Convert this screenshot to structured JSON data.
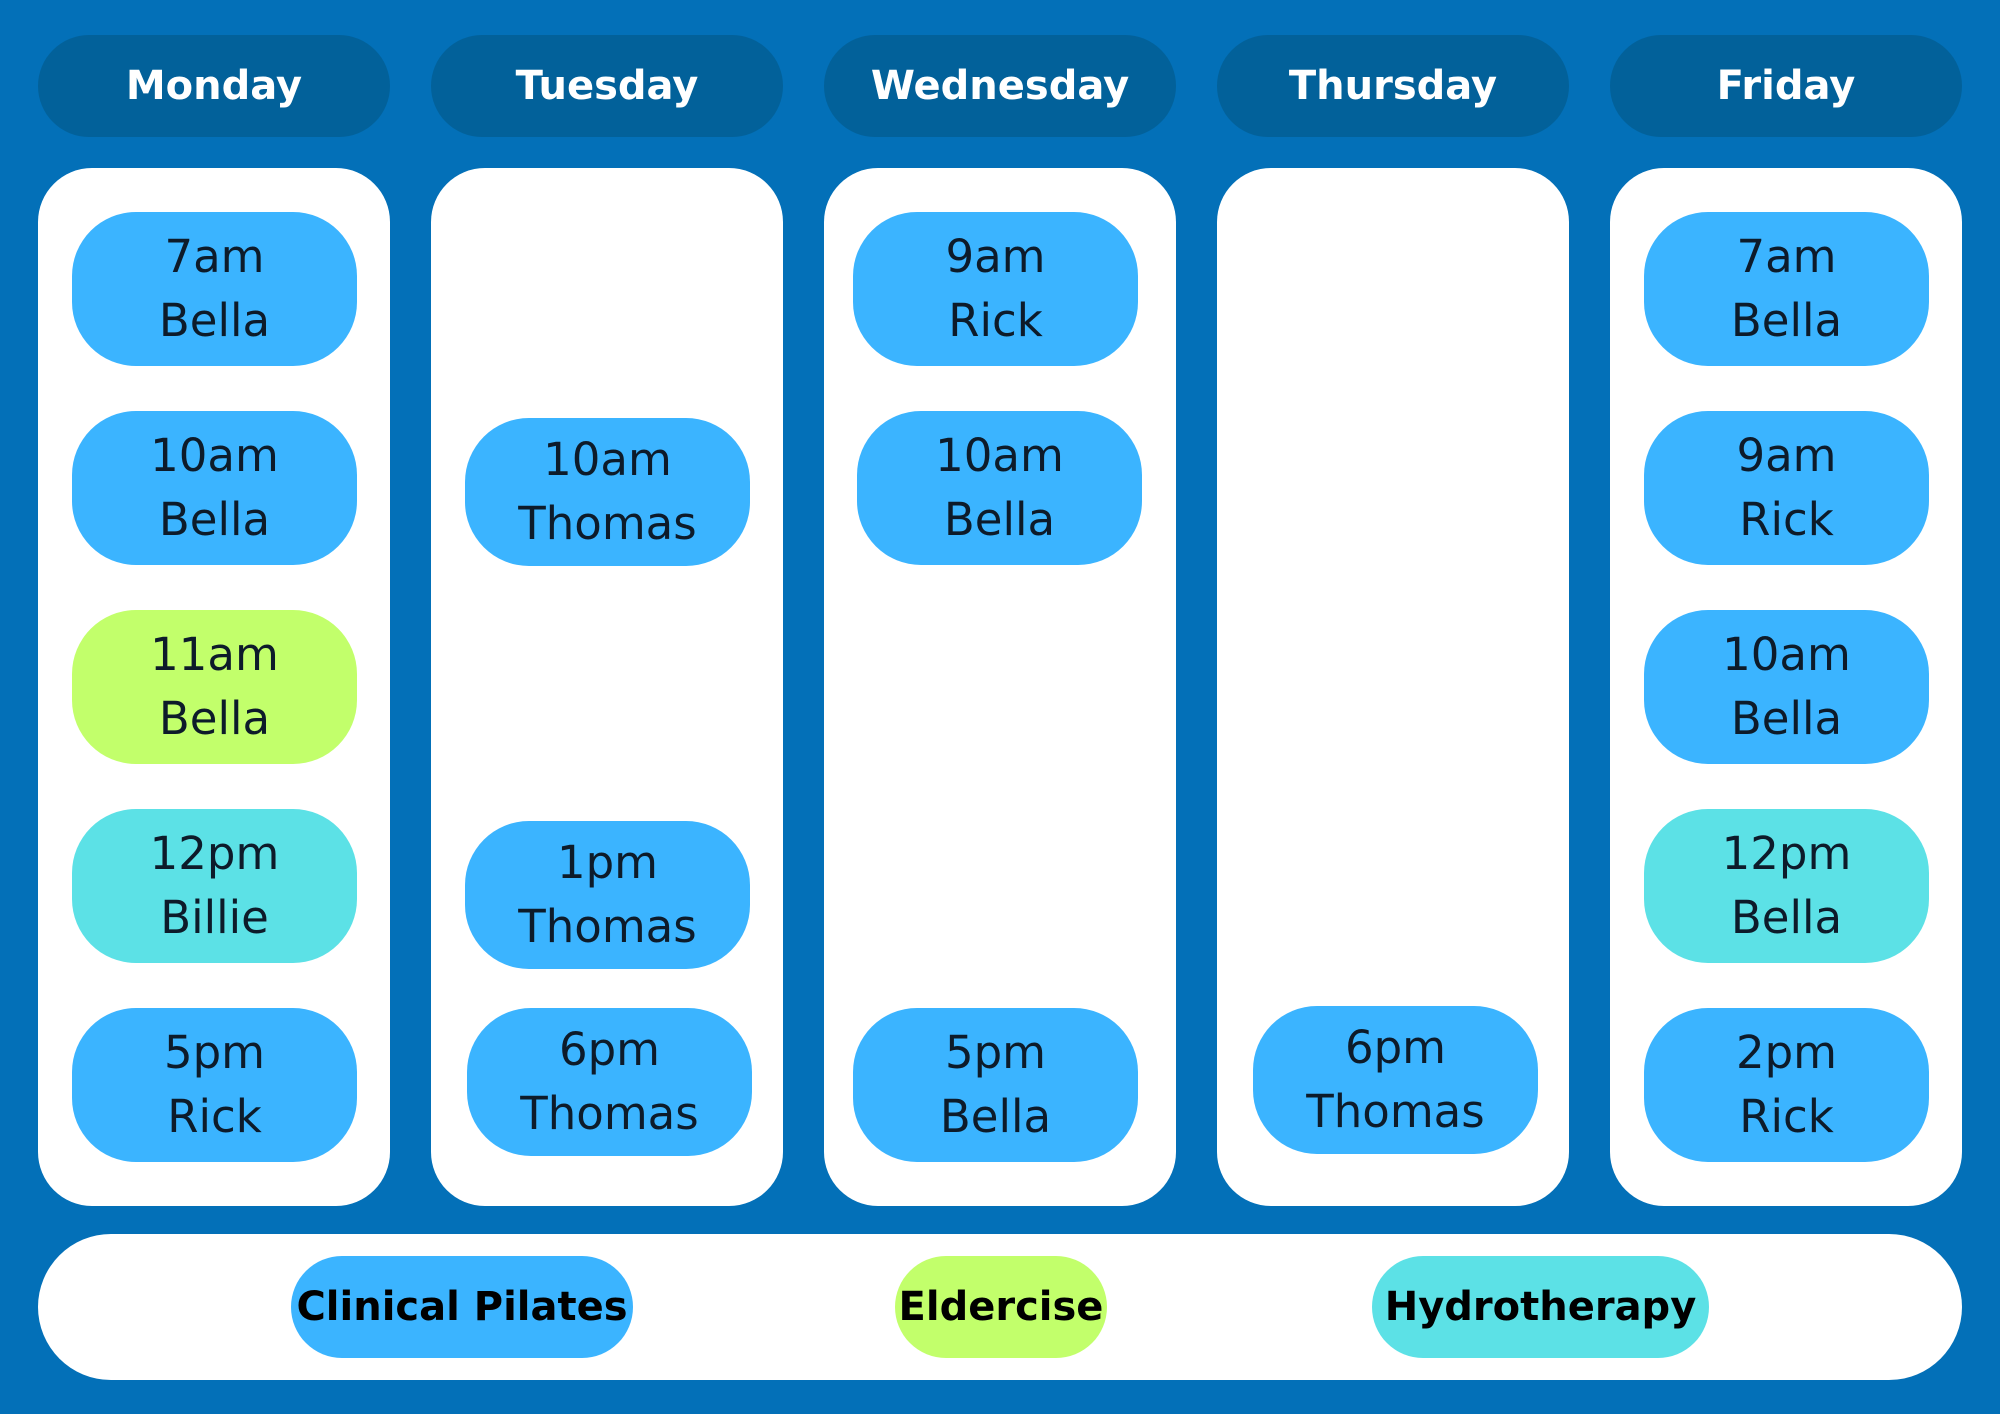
{
  "days": [
    {
      "name": "Monday",
      "classes": [
        {
          "time": "7am",
          "instructor": "Bella",
          "type": "Clinical Pilates"
        },
        {
          "time": "10am",
          "instructor": "Bella",
          "type": "Clinical Pilates"
        },
        {
          "time": "11am",
          "instructor": "Bella",
          "type": "Eldercise"
        },
        {
          "time": "12pm",
          "instructor": "Billie",
          "type": "Hydrotherapy"
        },
        {
          "time": "5pm",
          "instructor": "Rick",
          "type": "Clinical Pilates"
        }
      ]
    },
    {
      "name": "Tuesday",
      "classes": [
        {
          "time": "10am",
          "instructor": "Thomas",
          "type": "Clinical Pilates"
        },
        {
          "time": "1pm",
          "instructor": "Thomas",
          "type": "Clinical Pilates"
        },
        {
          "time": "6pm",
          "instructor": "Thomas",
          "type": "Clinical Pilates"
        }
      ]
    },
    {
      "name": "Wednesday",
      "classes": [
        {
          "time": "9am",
          "instructor": "Rick",
          "type": "Clinical Pilates"
        },
        {
          "time": "10am",
          "instructor": "Bella",
          "type": "Clinical Pilates"
        },
        {
          "time": "5pm",
          "instructor": "Bella",
          "type": "Clinical Pilates"
        }
      ]
    },
    {
      "name": "Thursday",
      "classes": [
        {
          "time": "6pm",
          "instructor": "Thomas",
          "type": "Clinical Pilates"
        }
      ]
    },
    {
      "name": "Friday",
      "classes": [
        {
          "time": "7am",
          "instructor": "Bella",
          "type": "Clinical Pilates"
        },
        {
          "time": "9am",
          "instructor": "Rick",
          "type": "Clinical Pilates"
        },
        {
          "time": "10am",
          "instructor": "Bella",
          "type": "Clinical Pilates"
        },
        {
          "time": "12pm",
          "instructor": "Bella",
          "type": "Hydrotherapy"
        },
        {
          "time": "2pm",
          "instructor": "Rick",
          "type": "Clinical Pilates"
        }
      ]
    }
  ],
  "legend": [
    {
      "label": "Clinical Pilates",
      "color": "#3BB4FF"
    },
    {
      "label": "Eldercise",
      "color": "#C2FF6B"
    },
    {
      "label": "Hydrotherapy",
      "color": "#5CE1E6"
    }
  ],
  "colors": {
    "background": "#0370B8",
    "header": "#02619A",
    "panel": "#FFFFFF"
  }
}
